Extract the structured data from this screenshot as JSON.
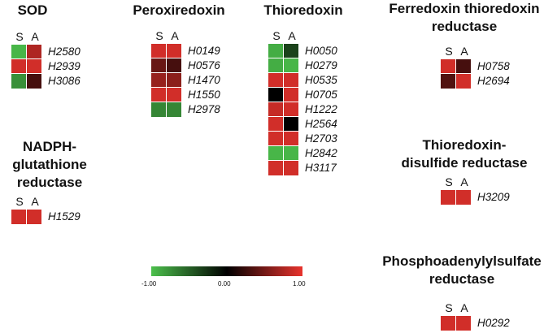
{
  "panels": [
    {
      "id": "sod",
      "title": [
        "SOD"
      ],
      "cols": [
        "S",
        "A"
      ],
      "rows": [
        {
          "gene": "H2580",
          "values": [
            -0.95,
            0.75
          ]
        },
        {
          "gene": "H2939",
          "values": [
            0.9,
            0.9
          ]
        },
        {
          "gene": "H3086",
          "values": [
            -0.75,
            0.3
          ]
        }
      ]
    },
    {
      "id": "peroxiredoxin",
      "title": [
        "Peroxiredoxin"
      ],
      "cols": [
        "S",
        "A"
      ],
      "rows": [
        {
          "gene": "H0149",
          "values": [
            0.9,
            0.9
          ]
        },
        {
          "gene": "H0576",
          "values": [
            0.45,
            0.3
          ]
        },
        {
          "gene": "H1470",
          "values": [
            0.65,
            0.6
          ]
        },
        {
          "gene": "H1550",
          "values": [
            0.9,
            0.9
          ]
        },
        {
          "gene": "H2978",
          "values": [
            -0.7,
            -0.7
          ]
        }
      ]
    },
    {
      "id": "thioredoxin",
      "title": [
        "Thioredoxin"
      ],
      "cols": [
        "S",
        "A"
      ],
      "rows": [
        {
          "gene": "H0050",
          "values": [
            -0.9,
            -0.35
          ]
        },
        {
          "gene": "H0279",
          "values": [
            -0.9,
            -0.95
          ]
        },
        {
          "gene": "H0535",
          "values": [
            0.9,
            0.9
          ]
        },
        {
          "gene": "H0705",
          "values": [
            0.0,
            0.9
          ]
        },
        {
          "gene": "H1222",
          "values": [
            0.85,
            0.9
          ]
        },
        {
          "gene": "H2564",
          "values": [
            0.9,
            0.0
          ]
        },
        {
          "gene": "H2703",
          "values": [
            0.9,
            0.9
          ]
        },
        {
          "gene": "H2842",
          "values": [
            -0.95,
            -0.95
          ]
        },
        {
          "gene": "H3117",
          "values": [
            0.9,
            0.9
          ]
        }
      ]
    },
    {
      "id": "ferredoxin",
      "title": [
        "Ferredoxin thioredoxin",
        "reductase"
      ],
      "cols": [
        "S",
        "A"
      ],
      "rows": [
        {
          "gene": "H0758",
          "values": [
            0.9,
            0.3
          ]
        },
        {
          "gene": "H2694",
          "values": [
            0.35,
            0.9
          ]
        }
      ]
    },
    {
      "id": "nadph",
      "title": [
        "NADPH-",
        "glutathione",
        "reductase"
      ],
      "cols": [
        "S",
        "A"
      ],
      "rows": [
        {
          "gene": "H1529",
          "values": [
            0.9,
            0.9
          ]
        }
      ]
    },
    {
      "id": "tdsr",
      "title": [
        "Thioredoxin-",
        "disulfide reductase"
      ],
      "cols": [
        "S",
        "A"
      ],
      "rows": [
        {
          "gene": "H3209",
          "values": [
            0.9,
            0.9
          ]
        }
      ]
    },
    {
      "id": "paps",
      "title": [
        "Phosphoadenylylsulfate",
        "reductase"
      ],
      "cols": [
        "S",
        "A"
      ],
      "rows": [
        {
          "gene": "H0292",
          "values": [
            0.9,
            0.9
          ]
        }
      ]
    }
  ],
  "legend": {
    "min": -1.0,
    "max": 1.0,
    "min_label": "-1.00",
    "mid_label": "0.00",
    "max_label": "1.00",
    "colors": {
      "low": "#4cc04c",
      "mid": "#000000",
      "high": "#e8332d"
    }
  }
}
